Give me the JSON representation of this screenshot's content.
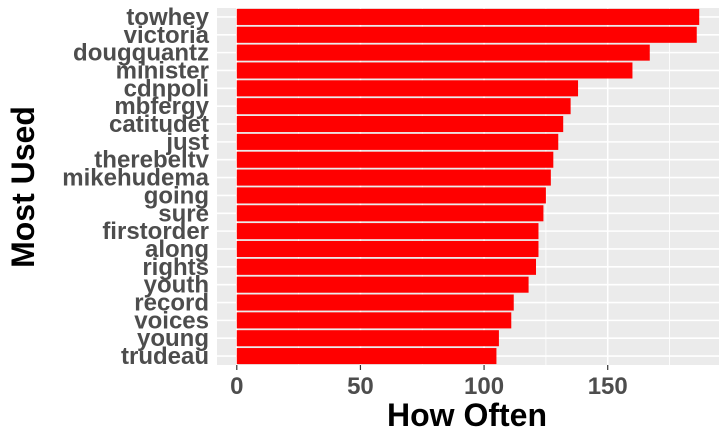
{
  "chart_data": {
    "type": "bar",
    "orientation": "horizontal",
    "categories": [
      "towhey",
      "victoria",
      "dougquantz",
      "minister",
      "cdnpoli",
      "mbfergy",
      "catitudet",
      "just",
      "therebeltv",
      "mikehudema",
      "going",
      "sure",
      "firstorder",
      "along",
      "rights",
      "youth",
      "record",
      "voices",
      "young",
      "trudeau"
    ],
    "values": [
      187,
      186,
      167,
      160,
      138,
      135,
      132,
      130,
      128,
      127,
      125,
      124,
      122,
      122,
      121,
      118,
      112,
      111,
      106,
      105
    ],
    "xlabel": "How Often",
    "ylabel": "Most Used",
    "xlim": [
      -8,
      195
    ],
    "x_ticks": [
      0,
      50,
      100,
      150
    ],
    "grid": true,
    "legend": "none",
    "colors": {
      "bar": "#ff0000",
      "panel": "#ebebeb",
      "grid": "#ffffff",
      "tick_text": "#4d4d4d",
      "title_text": "#000000"
    }
  }
}
